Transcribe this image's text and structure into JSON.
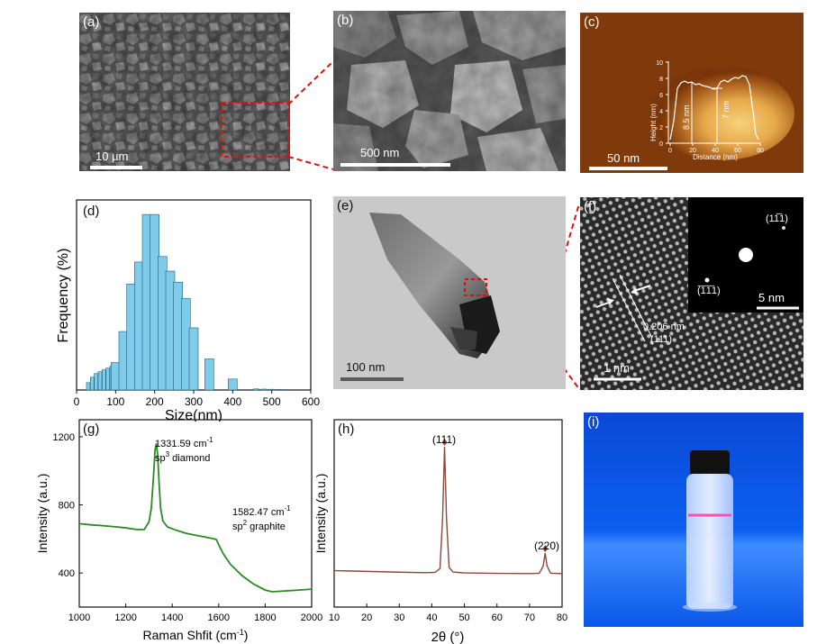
{
  "figure": {
    "panels": {
      "a": {
        "label": "(a)",
        "scale_bar": "10 µm"
      },
      "b": {
        "label": "(b)",
        "scale_bar": "500 nm"
      },
      "c": {
        "label": "(c)",
        "scale_bar": "50 nm",
        "inset": {
          "ylabel": "Height (nm)",
          "xlabel": "Distance (nm)",
          "yticks": [
            "0",
            "2",
            "4",
            "6",
            "8",
            "10"
          ],
          "xticks": [
            "0",
            "20",
            "40",
            "60",
            "80"
          ],
          "annot1": "8.5 nm",
          "annot2": "7 nm"
        }
      },
      "d": {
        "label": "(d)"
      },
      "e": {
        "label": "(e)",
        "scale_bar": "100 nm"
      },
      "f": {
        "label": "(f)",
        "scale_bar": "1 nm",
        "inset_scale_bar": "5 nm",
        "spot1": "(11̅1)",
        "spot2": "(̅1̅1̅1)",
        "d_spacing": "0.206 nm",
        "plane": "(111)"
      },
      "g": {
        "label": "(g)",
        "peak1_value": "1331.59 cm",
        "peak1_sup": "-1",
        "peak1_name_prefix": "sp",
        "peak1_name_sup": "3",
        "peak1_name_suffix": " diamond",
        "peak2_value": "1582.47 cm",
        "peak2_sup": "-1",
        "peak2_name_prefix": "sp",
        "peak2_name_sup": "2",
        "peak2_name_suffix": " graphite"
      },
      "h": {
        "label": "(h)",
        "peak1": "(111)",
        "peak2": "(220)"
      },
      "i": {
        "label": "(i)"
      }
    }
  },
  "chart_data": [
    {
      "id": "d",
      "type": "bar",
      "title": "",
      "xlabel": "Size(nm)",
      "ylabel": "Frequency (%)",
      "xlim": [
        0,
        600
      ],
      "ylim": [
        0,
        100
      ],
      "xticks": [
        0,
        100,
        200,
        300,
        400,
        500,
        600
      ],
      "color": "#7ecbea",
      "x": [
        30,
        40,
        50,
        60,
        70,
        80,
        90,
        100,
        120,
        140,
        160,
        180,
        200,
        220,
        240,
        260,
        280,
        300,
        340,
        400,
        460,
        480,
        500,
        520
      ],
      "values": [
        4,
        7,
        9,
        10,
        11,
        12,
        13,
        15,
        32,
        58,
        70,
        96,
        96,
        73,
        65,
        59,
        50,
        34,
        17,
        6,
        0.6,
        0.5,
        0.4,
        0.3
      ]
    },
    {
      "id": "g",
      "type": "line",
      "title": "",
      "xlabel": "Raman Shfit (cm",
      "xlabel_sup": "-1",
      "xlabel_end": ")",
      "ylabel": "Intensity (a.u.)",
      "xlim": [
        1000,
        2000
      ],
      "ylim": [
        200,
        1300
      ],
      "xticks": [
        1000,
        1200,
        1400,
        1600,
        1800,
        2000
      ],
      "yticks": [
        400,
        800,
        1200
      ],
      "color": "#2a8a24",
      "x": [
        1000,
        1050,
        1100,
        1150,
        1200,
        1250,
        1280,
        1300,
        1310,
        1320,
        1326,
        1331.59,
        1337,
        1343,
        1350,
        1360,
        1380,
        1420,
        1460,
        1500,
        1540,
        1560,
        1575,
        1582.47,
        1590,
        1600,
        1620,
        1650,
        1700,
        1750,
        1800,
        1830,
        1900,
        2000
      ],
      "y": [
        690,
        683,
        678,
        672,
        665,
        655,
        656,
        700,
        780,
        980,
        1120,
        1160,
        1100,
        940,
        780,
        705,
        670,
        650,
        633,
        622,
        612,
        606,
        602,
        600,
        596,
        566,
        512,
        452,
        385,
        335,
        300,
        290,
        296,
        305
      ]
    },
    {
      "id": "h",
      "type": "line",
      "title": "",
      "xlabel": "2θ (°)",
      "ylabel": "Intensity (a.u.)",
      "xlim": [
        10,
        80
      ],
      "ylim": [
        0,
        100
      ],
      "xticks": [
        10,
        20,
        30,
        40,
        50,
        60,
        70,
        80
      ],
      "color": "#8a4a3a",
      "x": [
        10,
        20,
        30,
        38,
        41,
        42.5,
        43.3,
        43.9,
        44.5,
        45.3,
        46.5,
        50,
        60,
        70,
        73,
        74.2,
        74.8,
        75.4,
        76.5,
        80
      ],
      "y": [
        4.5,
        3.9,
        3.3,
        2.9,
        3.2,
        6,
        45,
        100,
        45,
        7,
        3.4,
        2.7,
        2.4,
        2.2,
        2.5,
        8,
        18,
        8,
        2.5,
        2.2
      ]
    }
  ]
}
